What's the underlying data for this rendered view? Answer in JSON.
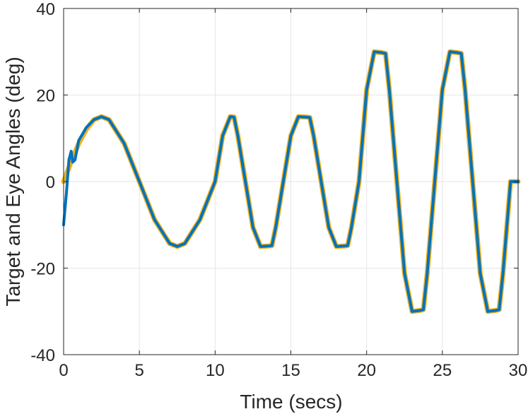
{
  "chart_data": {
    "type": "line",
    "xlabel": "Time (secs)",
    "ylabel": "Target and Eye Angles (deg)",
    "xlim": [
      0,
      30
    ],
    "ylim": [
      -40,
      40
    ],
    "x_ticks": [
      0,
      5,
      10,
      15,
      20,
      25,
      30
    ],
    "y_ticks": [
      -40,
      -20,
      0,
      20,
      40
    ],
    "x_tick_labels": [
      "0",
      "5",
      "10",
      "15",
      "20",
      "25",
      "30"
    ],
    "y_tick_labels": [
      "-40",
      "-20",
      "0",
      "20",
      "40"
    ],
    "grid": true,
    "series": [
      {
        "color": "#EDB120",
        "x": [
          0,
          0.5,
          1.0,
          1.5,
          2.0,
          2.5,
          3.0,
          4.0,
          5.0,
          6.0,
          7.0,
          7.5,
          8.0,
          9.0,
          10.0,
          10.5,
          11.0,
          11.25,
          11.5,
          12.0,
          12.5,
          13.0,
          13.5,
          13.75,
          14.0,
          14.5,
          15.0,
          15.5,
          16.0,
          16.25,
          16.5,
          17.0,
          17.5,
          18.0,
          18.5,
          18.75,
          19.0,
          19.5,
          20.0,
          20.5,
          21.0,
          21.25,
          21.5,
          22.0,
          22.5,
          23.0,
          23.5,
          23.75,
          24.0,
          24.5,
          25.0,
          25.5,
          26.0,
          26.25,
          26.5,
          27.0,
          27.5,
          28.0,
          28.5,
          28.75,
          29.0,
          29.5,
          30.0
        ],
        "y": [
          0,
          4.6,
          8.8,
          12.1,
          14.3,
          15.0,
          14.3,
          8.8,
          0,
          -8.8,
          -14.3,
          -15.0,
          -14.3,
          -8.8,
          0,
          10.6,
          15.0,
          14.9,
          10.6,
          0,
          -10.6,
          -15.0,
          -14.9,
          -14.8,
          -10.6,
          0,
          10.6,
          15.0,
          14.9,
          14.8,
          10.6,
          0,
          -10.6,
          -15.0,
          -14.9,
          -14.8,
          -10.6,
          0,
          21.2,
          30.0,
          29.8,
          29.6,
          21.2,
          0,
          -21.2,
          -30.0,
          -29.8,
          -29.6,
          -21.2,
          0,
          21.2,
          30.0,
          29.8,
          29.6,
          21.2,
          0,
          -21.2,
          -30.0,
          -29.8,
          -29.6,
          -21.2,
          0,
          0
        ]
      },
      {
        "color": "#0072BD",
        "x": [
          0,
          0.2,
          0.35,
          0.5,
          0.6,
          0.75,
          1.0,
          1.25,
          1.5,
          2.0,
          2.5,
          3.0,
          4.0,
          5.0,
          6.0,
          7.0,
          7.5,
          8.0,
          9.0,
          10.0,
          10.5,
          11.0,
          11.25,
          11.5,
          12.0,
          12.5,
          13.0,
          13.5,
          13.75,
          14.0,
          14.5,
          15.0,
          15.5,
          16.0,
          16.25,
          16.5,
          17.0,
          17.5,
          18.0,
          18.5,
          18.75,
          19.0,
          19.5,
          20.0,
          20.5,
          21.0,
          21.25,
          21.5,
          22.0,
          22.5,
          23.0,
          23.5,
          23.75,
          24.0,
          24.5,
          25.0,
          25.5,
          26.0,
          26.25,
          26.5,
          27.0,
          27.5,
          28.0,
          28.5,
          28.75,
          29.0,
          29.5,
          30.0
        ],
        "y": [
          -10,
          -2,
          5,
          7,
          4.5,
          5,
          9.5,
          11,
          12.5,
          14.3,
          15.0,
          14.3,
          8.8,
          0,
          -8.8,
          -14.3,
          -15.0,
          -14.3,
          -8.8,
          0,
          10.6,
          15.0,
          14.9,
          10.6,
          0,
          -10.6,
          -15.0,
          -14.9,
          -14.8,
          -10.6,
          0,
          10.6,
          15.0,
          14.9,
          14.8,
          10.6,
          0,
          -10.6,
          -15.0,
          -14.9,
          -14.8,
          -10.6,
          0,
          21.2,
          30.0,
          29.8,
          29.6,
          21.2,
          0,
          -21.2,
          -30.0,
          -29.8,
          -29.6,
          -21.2,
          0,
          21.2,
          30.0,
          29.8,
          29.6,
          21.2,
          0,
          -21.2,
          -30.0,
          -29.8,
          -29.6,
          -21.2,
          0,
          0
        ]
      }
    ]
  }
}
